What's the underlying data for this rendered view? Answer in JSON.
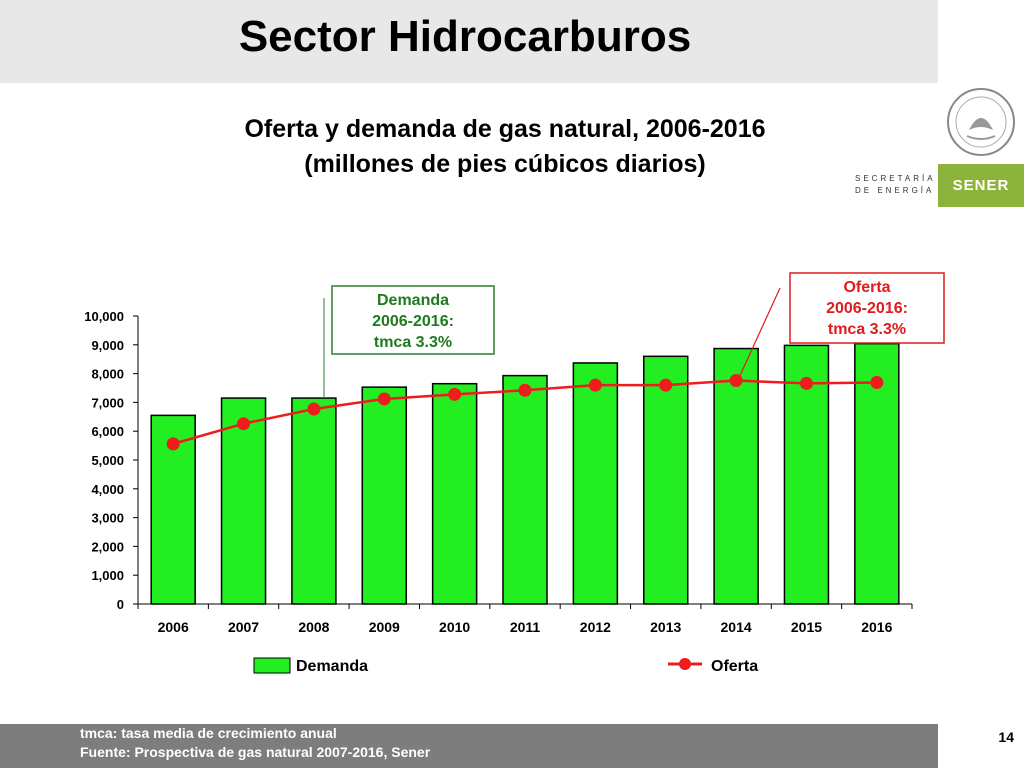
{
  "slide": {
    "title": "Sector Hidrocarburos",
    "page_number": "14"
  },
  "logo": {
    "ministry_line1": "SECRETARÍA",
    "ministry_line2": "DE ENERGÍA",
    "brand": "SENER",
    "brand_color": "#8cb43c"
  },
  "footer": {
    "line1": "tmca: tasa media de crecimiento anual",
    "line2": "Fuente: Prospectiva de gas natural 2007-2016, Sener"
  },
  "annotations": {
    "demanda": [
      "Demanda",
      "2006-2016:",
      "tmca 3.3%"
    ],
    "oferta": [
      "Oferta",
      "2006-2016:",
      "tmca 3.3%"
    ]
  },
  "chart_data": {
    "type": "bar",
    "title_line1": "Oferta y demanda de gas natural, 2006-2016",
    "title_line2": "(millones de pies cúbicos diarios)",
    "categories": [
      "2006",
      "2007",
      "2008",
      "2009",
      "2010",
      "2011",
      "2012",
      "2013",
      "2014",
      "2015",
      "2016"
    ],
    "ylim": [
      0,
      10000
    ],
    "yticks": [
      "0",
      "1,000",
      "2,000",
      "3,000",
      "4,000",
      "5,000",
      "6,000",
      "7,000",
      "8,000",
      "9,000",
      "10,000"
    ],
    "grid": false,
    "legend_position": "bottom",
    "series": [
      {
        "name": "Demanda",
        "type": "bar",
        "color": "#22ee22",
        "values": [
          6550,
          7150,
          7150,
          7530,
          7650,
          7930,
          8370,
          8600,
          8870,
          8980,
          9040
        ]
      },
      {
        "name": "Oferta",
        "type": "line",
        "color": "#ee1c1c",
        "values": [
          5560,
          6260,
          6770,
          7120,
          7280,
          7420,
          7600,
          7600,
          7760,
          7660,
          7690
        ]
      }
    ]
  }
}
